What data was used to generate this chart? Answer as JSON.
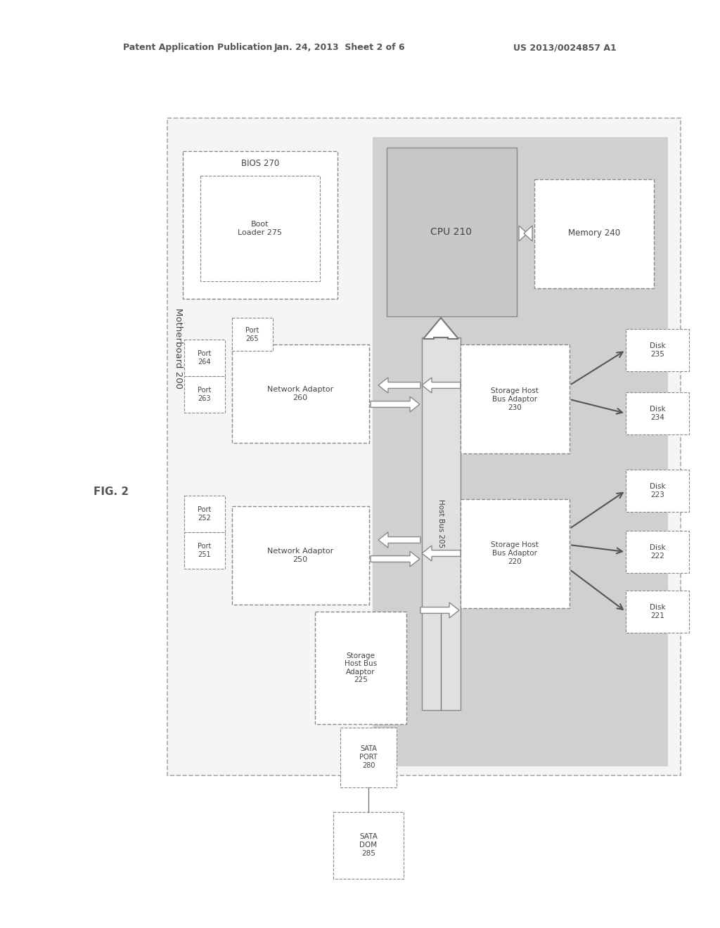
{
  "header_left": "Patent Application Publication",
  "header_mid": "Jan. 24, 2013  Sheet 2 of 6",
  "header_right": "US 2013/0024857 A1",
  "fig_label": "FIG. 2",
  "bg": "#ffffff",
  "ec": "#888888",
  "tc": "#444444",
  "gray_shade": "#cccccc",
  "motherboard_label": "Motherboard 200",
  "bios_label": "BIOS 270",
  "bootloader_label": "Boot\nLoader 275",
  "cpu_label": "CPU 210",
  "memory_label": "Memory 240",
  "hbus_label": "Host Bus 205",
  "net250_label": "Network Adaptor\n250",
  "net260_label": "Network Adaptor\n260",
  "hba220_label": "Storage Host\nBus Adaptor\n220",
  "hba230_label": "Storage Host\nBus Adaptor\n230",
  "hba225_label": "Storage\nHost Bus\nAdaptor\n225",
  "sataport_label": "SATA\nPORT\n280",
  "satadom_label": "SATA\nDOM\n285",
  "port251": "Port\n251",
  "port252": "Port\n252",
  "port263": "Port\n263",
  "port264": "Port\n264",
  "port265": "Port\n265",
  "disk221": "Disk\n221",
  "disk222": "Disk\n222",
  "disk223": "Disk\n223",
  "disk234": "Disk\n234",
  "disk235": "Disk\n235"
}
